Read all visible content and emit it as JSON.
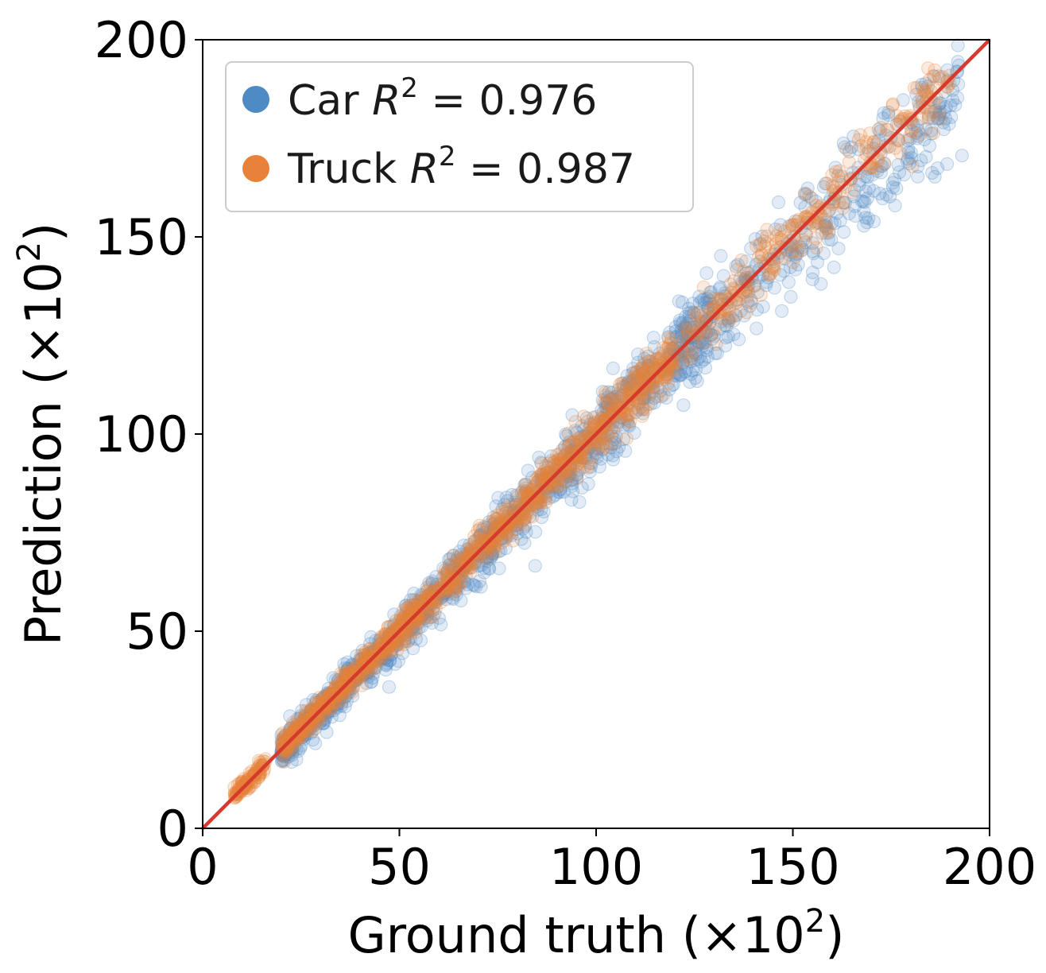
{
  "chart_data": {
    "type": "scatter",
    "title": "",
    "xlabel": "Ground truth (×10",
    "xlabel_exp": "2",
    "xlabel_close": ")",
    "ylabel": "Prediction (×10",
    "ylabel_exp": "2",
    "ylabel_close": ")",
    "xlim": [
      0,
      200
    ],
    "ylim": [
      0,
      200
    ],
    "xticks": [
      0,
      50,
      100,
      150,
      200
    ],
    "yticks": [
      0,
      50,
      100,
      150,
      200
    ],
    "xtick_labels": [
      "0",
      "50",
      "100",
      "150",
      "200"
    ],
    "ytick_labels": [
      "0",
      "50",
      "100",
      "150",
      "200"
    ],
    "grid": false,
    "legend_position": "top-left",
    "series": [
      {
        "name": "Car",
        "legend_prefix": "Car",
        "r2_label": "R",
        "r2_exp": "2",
        "r2_value": "= 0.976",
        "color": "#4e8bc4",
        "x_range": [
          20,
          193
        ],
        "description_note": "dense cloud along y = x with spread growing with x"
      },
      {
        "name": "Truck",
        "legend_prefix": "Truck",
        "r2_label": "R",
        "r2_exp": "2",
        "r2_value": "= 0.987",
        "color": "#e8823a",
        "x_range": [
          8,
          190
        ]
      }
    ],
    "reference_line": {
      "type": "identity",
      "color": "#d63a2e",
      "from": [
        0,
        0
      ],
      "to": [
        200,
        200
      ]
    }
  }
}
